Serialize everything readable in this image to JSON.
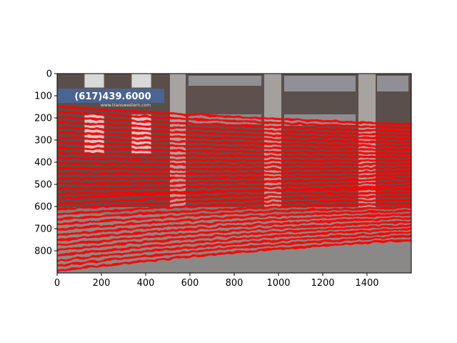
{
  "figure": {
    "image": {
      "sign_phone": "(617)439.6000",
      "sign_url": "www.transwestern.com",
      "colors": {
        "brick": "#5b4f4c",
        "concrete": "#9b9896",
        "pavement": "#7f7f7f",
        "sign_bg": "#4a6290",
        "overlay": "#ff0000"
      }
    },
    "axes": {
      "x_ticks": [
        "0",
        "200",
        "400",
        "600",
        "800",
        "1000",
        "1200",
        "1400"
      ],
      "y_ticks": [
        "0",
        "100",
        "200",
        "300",
        "400",
        "500",
        "600",
        "700",
        "800"
      ],
      "xlim": [
        0,
        1600
      ],
      "ylim": [
        900,
        0
      ]
    },
    "overlay": {
      "description_color": "red",
      "line_count": 33
    }
  }
}
